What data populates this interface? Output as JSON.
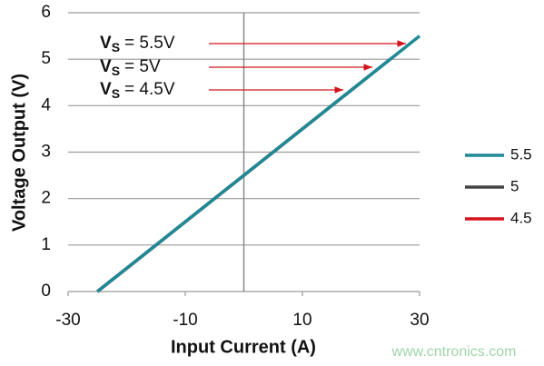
{
  "chart_data": {
    "type": "line",
    "xlabel": "Input Current (A)",
    "ylabel": "Voltage Output (V)",
    "xlim": [
      -30,
      30
    ],
    "ylim": [
      0,
      6
    ],
    "xticks": [
      -30,
      -10,
      10,
      30
    ],
    "yticks": [
      0,
      1,
      2,
      3,
      4,
      5,
      6
    ],
    "grid": true,
    "legend": "right",
    "series": [
      {
        "name": "5.5",
        "color": "#1f8a96",
        "x": [
          -25,
          30
        ],
        "values": [
          0,
          5.5
        ]
      },
      {
        "name": "5",
        "color": "#454545",
        "x": [
          -25,
          25
        ],
        "values": [
          0,
          5
        ]
      },
      {
        "name": "4.5",
        "color": "#d4141c",
        "x": [
          -25,
          20
        ],
        "values": [
          0,
          4.5
        ]
      }
    ],
    "annotations": [
      {
        "symbol": "V",
        "subscript": "S",
        "text": "= 5.5V"
      },
      {
        "symbol": "V",
        "subscript": "S",
        "text": "= 5V"
      },
      {
        "symbol": "V",
        "subscript": "S",
        "text": "= 4.5V"
      }
    ],
    "watermark": "www.cntronics.com"
  }
}
